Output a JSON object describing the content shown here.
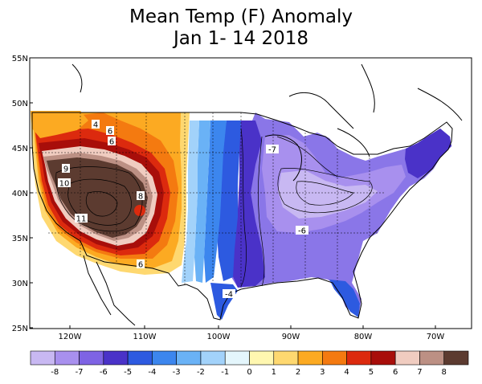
{
  "title": {
    "line1": "Mean Temp (F) Anomaly",
    "line2": "Jan 1- 14 2018"
  },
  "axes": {
    "lat_labels": [
      "55N",
      "50N",
      "45N",
      "40N",
      "35N",
      "30N",
      "25N"
    ],
    "lon_labels": [
      "120W",
      "110W",
      "100W",
      "90W",
      "80W",
      "70W"
    ]
  },
  "map_labels": [
    {
      "text": "4",
      "region": "northern-rockies"
    },
    {
      "text": "6",
      "region": "northern-great-basin"
    },
    {
      "text": "6",
      "region": "idaho-wyoming"
    },
    {
      "text": "9",
      "region": "nevada-north"
    },
    {
      "text": "10",
      "region": "nevada"
    },
    {
      "text": "8",
      "region": "utah-colorado"
    },
    {
      "text": "11",
      "region": "southwest"
    },
    {
      "text": "6",
      "region": "new-mexico"
    },
    {
      "text": "-7",
      "region": "upper-midwest"
    },
    {
      "text": "-6",
      "region": "tennessee-valley"
    },
    {
      "text": "-4",
      "region": "south-texas"
    }
  ],
  "colorbar": {
    "tick_labels": [
      "-8",
      "-7",
      "-6",
      "-5",
      "-4",
      "-3",
      "-2",
      "-1",
      "0",
      "1",
      "2",
      "3",
      "4",
      "5",
      "6",
      "7",
      "8"
    ],
    "colors": [
      "#c8b8f2",
      "#a890ee",
      "#7e63e4",
      "#4a32c8",
      "#2d5ae0",
      "#3c86ee",
      "#6ab2f6",
      "#a2d2fa",
      "#e4f6fc",
      "#fff7b0",
      "#fed870",
      "#fcaa22",
      "#f47a10",
      "#dc2a0e",
      "#a80e0a",
      "#f0ccc0",
      "#bc9084",
      "#5c3b30"
    ]
  }
}
